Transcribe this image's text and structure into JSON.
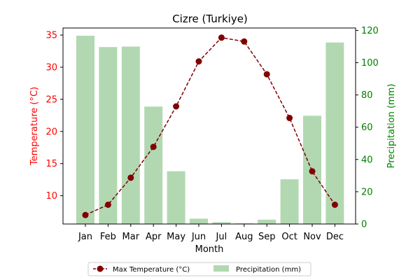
{
  "chart_data": {
    "type": "bar+line",
    "title": "Cizre (Turkiye)",
    "xlabel": "Month",
    "ylabel_left": "Temperature (°C)",
    "ylabel_right": "Precipitation (mm)",
    "categories": [
      "Jan",
      "Feb",
      "Mar",
      "Apr",
      "May",
      "Jun",
      "Jul",
      "Aug",
      "Sep",
      "Oct",
      "Nov",
      "Dec"
    ],
    "left_axis": {
      "ylim": [
        5.6,
        36.1
      ],
      "ticks": [
        10,
        15,
        20,
        25,
        30,
        35
      ],
      "color": "#ff0000"
    },
    "right_axis": {
      "ylim": [
        0,
        121.5
      ],
      "ticks": [
        0,
        20,
        40,
        60,
        80,
        100,
        120
      ],
      "color": "#008000"
    },
    "series": [
      {
        "name": "Max Temperature (°C)",
        "kind": "line",
        "axis": "left",
        "color": "#800000",
        "values": [
          7.0,
          8.6,
          12.8,
          17.6,
          23.9,
          30.9,
          34.6,
          34.0,
          28.9,
          22.1,
          13.8,
          8.6
        ]
      },
      {
        "name": "Precipitation (mm)",
        "kind": "bar",
        "axis": "right",
        "color": "#b2d8b2",
        "values": [
          116.7,
          109.7,
          110.0,
          72.8,
          32.7,
          3.3,
          1.1,
          0.4,
          2.7,
          27.7,
          67.1,
          112.5
        ]
      }
    ],
    "legend_position": "bottom-center",
    "grid": false
  }
}
